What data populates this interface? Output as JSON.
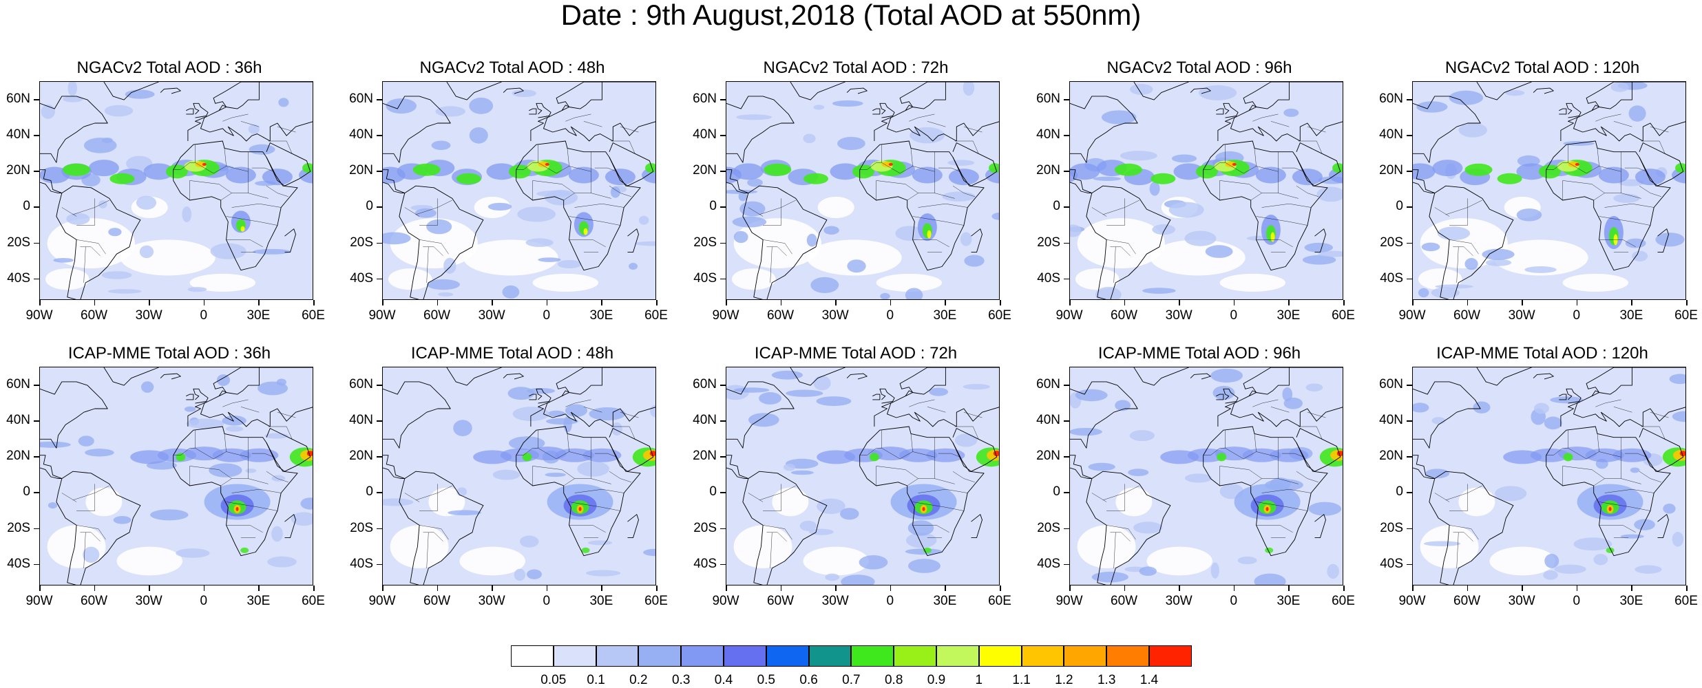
{
  "title": "Date : 9th August,2018 (Total AOD at 550nm)",
  "lat_ticks": [
    "60N",
    "40N",
    "20N",
    "0",
    "20S",
    "40S"
  ],
  "lon_ticks": [
    "90W",
    "60W",
    "30W",
    "0",
    "30E",
    "60E"
  ],
  "map_extent": {
    "lon_min": -90,
    "lon_max": 60,
    "lat_min": -52,
    "lat_max": 70
  },
  "panels": [
    {
      "title": "NGACv2 Total AOD : 36h",
      "model": "NGACv2",
      "lead": "36h"
    },
    {
      "title": "NGACv2 Total AOD : 48h",
      "model": "NGACv2",
      "lead": "48h"
    },
    {
      "title": "NGACv2 Total AOD : 72h",
      "model": "NGACv2",
      "lead": "72h"
    },
    {
      "title": "NGACv2 Total AOD : 96h",
      "model": "NGACv2",
      "lead": "96h"
    },
    {
      "title": "NGACv2 Total AOD : 120h",
      "model": "NGACv2",
      "lead": "120h"
    },
    {
      "title": "ICAP-MME Total AOD : 36h",
      "model": "ICAP-MME",
      "lead": "36h"
    },
    {
      "title": "ICAP-MME Total AOD : 48h",
      "model": "ICAP-MME",
      "lead": "48h"
    },
    {
      "title": "ICAP-MME Total AOD : 72h",
      "model": "ICAP-MME",
      "lead": "72h"
    },
    {
      "title": "ICAP-MME Total AOD : 96h",
      "model": "ICAP-MME",
      "lead": "96h"
    },
    {
      "title": "ICAP-MME Total AOD : 120h",
      "model": "ICAP-MME",
      "lead": "120h"
    }
  ],
  "colorbar": {
    "labels": [
      "0.05",
      "0.1",
      "0.2",
      "0.3",
      "0.4",
      "0.5",
      "0.6",
      "0.7",
      "0.8",
      "0.9",
      "1",
      "1.1",
      "1.2",
      "1.3",
      "1.4"
    ],
    "colors": [
      "#ffffff",
      "#d9e1fb",
      "#b8c8f6",
      "#97b0f4",
      "#8199f2",
      "#6470ef",
      "#0f66f0",
      "#10948c",
      "#3fe81c",
      "#99f019",
      "#c3f85c",
      "#fffe00",
      "#ffc501",
      "#ffa600",
      "#ff7d00",
      "#ff2300"
    ]
  }
}
